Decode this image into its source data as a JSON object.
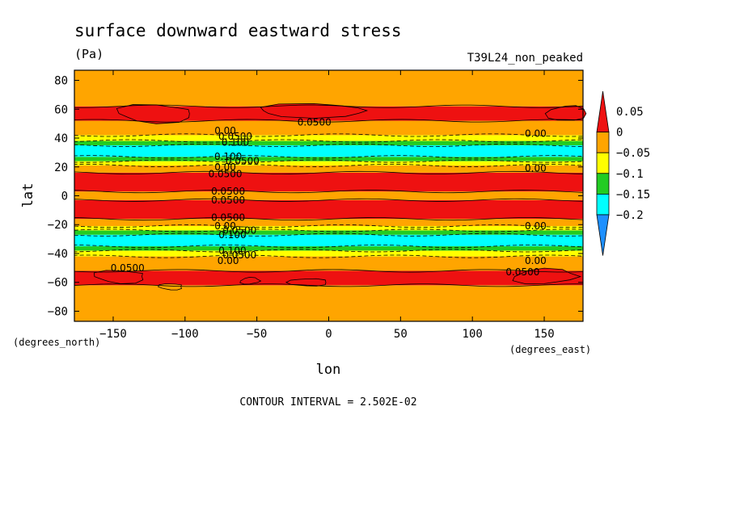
{
  "chart_data": {
    "type": "heatmap",
    "title": "surface downward eastward stress",
    "units": "(Pa)",
    "dataset": "T39L24_non_peaked",
    "xlabel": "lon",
    "ylabel": "lat",
    "x_units": "(degrees_east)",
    "y_units": "(degrees_north)",
    "xlim": [
      -177,
      177
    ],
    "ylim": [
      -87,
      87
    ],
    "x_ticks": [
      -150,
      -100,
      -50,
      0,
      50,
      100,
      150
    ],
    "y_ticks": [
      -80,
      -60,
      -40,
      -20,
      0,
      20,
      40,
      60,
      80
    ],
    "x_tick_labels": [
      "−150",
      "−100",
      "−50",
      "0",
      "50",
      "100",
      "150"
    ],
    "y_tick_labels": [
      "−80",
      "−60",
      "−40",
      "−20",
      "0",
      "20",
      "40",
      "60",
      "80"
    ],
    "colorbar": {
      "labels": [
        "0.05",
        "0",
        "−0.05",
        "−0.1",
        "−0.15",
        "−0.2"
      ],
      "bins": [
        {
          "range": [
            0.05,
            0.1
          ],
          "color": "#ee1111"
        },
        {
          "range": [
            0.0,
            0.05
          ],
          "color": "#ffa500"
        },
        {
          "range": [
            -0.05,
            0.0
          ],
          "color": "#ffff00"
        },
        {
          "range": [
            -0.1,
            -0.05
          ],
          "color": "#22cc22"
        },
        {
          "range": [
            -0.15,
            -0.1
          ],
          "color": "#00ffff"
        },
        {
          "range": [
            -0.2,
            -0.15
          ],
          "color": "#1e90ff"
        }
      ]
    },
    "zonal_bands": [
      {
        "lat": [
          -87,
          -62
        ],
        "level": 0.025
      },
      {
        "lat": [
          -62,
          -52
        ],
        "level": 0.06
      },
      {
        "lat": [
          -52,
          -42
        ],
        "level": 0.025
      },
      {
        "lat": [
          -42,
          -38
        ],
        "level": -0.025
      },
      {
        "lat": [
          -38,
          -35
        ],
        "level": -0.075
      },
      {
        "lat": [
          -35,
          -27
        ],
        "level": -0.125
      },
      {
        "lat": [
          -27,
          -24
        ],
        "level": -0.075
      },
      {
        "lat": [
          -24,
          -21
        ],
        "level": -0.025
      },
      {
        "lat": [
          -21,
          -16
        ],
        "level": 0.025
      },
      {
        "lat": [
          -16,
          -3
        ],
        "level": 0.07
      },
      {
        "lat": [
          -3,
          3
        ],
        "level": 0.025
      },
      {
        "lat": [
          3,
          16
        ],
        "level": 0.07
      },
      {
        "lat": [
          16,
          21
        ],
        "level": 0.025
      },
      {
        "lat": [
          21,
          24
        ],
        "level": -0.025
      },
      {
        "lat": [
          24,
          27
        ],
        "level": -0.075
      },
      {
        "lat": [
          27,
          35
        ],
        "level": -0.125
      },
      {
        "lat": [
          35,
          38
        ],
        "level": -0.075
      },
      {
        "lat": [
          38,
          42
        ],
        "level": -0.025
      },
      {
        "lat": [
          42,
          52
        ],
        "level": 0.025
      },
      {
        "lat": [
          52,
          62
        ],
        "level": 0.06
      },
      {
        "lat": [
          62,
          87
        ],
        "level": 0.025
      }
    ],
    "contour_labels": [
      {
        "text": "0.0500",
        "lon": -10,
        "lat": 51
      },
      {
        "text": "0.00",
        "lon": -72,
        "lat": 45
      },
      {
        "text": "0.0500",
        "lon": -65,
        "lat": 41
      },
      {
        "text": "0.100",
        "lon": -65,
        "lat": 37
      },
      {
        "text": "0.100",
        "lon": -70,
        "lat": 27
      },
      {
        "text": "0.0500",
        "lon": -60,
        "lat": 24
      },
      {
        "text": "0.00",
        "lon": -72,
        "lat": 20
      },
      {
        "text": "0.0500",
        "lon": -72,
        "lat": 15
      },
      {
        "text": "0.0500",
        "lon": -70,
        "lat": 3
      },
      {
        "text": "0.0500",
        "lon": -70,
        "lat": -3
      },
      {
        "text": "0.0500",
        "lon": -70,
        "lat": -15
      },
      {
        "text": "0.00",
        "lon": -72,
        "lat": -21
      },
      {
        "text": "0.0500",
        "lon": -62,
        "lat": -24
      },
      {
        "text": "0.100",
        "lon": -67,
        "lat": -27
      },
      {
        "text": "0.100",
        "lon": -67,
        "lat": -38
      },
      {
        "text": "0.0500",
        "lon": -62,
        "lat": -41
      },
      {
        "text": "0.00",
        "lon": -70,
        "lat": -45
      },
      {
        "text": "0.0500",
        "lon": -140,
        "lat": -50
      },
      {
        "text": "0.00",
        "lon": 144,
        "lat": 43
      },
      {
        "text": "0.00",
        "lon": 144,
        "lat": 19
      },
      {
        "text": "0.00",
        "lon": 144,
        "lat": -21
      },
      {
        "text": "0.00",
        "lon": 144,
        "lat": -45
      },
      {
        "text": "0.0500",
        "lon": 135,
        "lat": -53
      }
    ],
    "footer": "CONTOUR INTERVAL = 2.502E-02"
  }
}
